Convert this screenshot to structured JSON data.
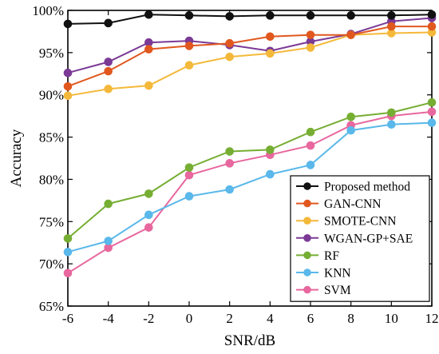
{
  "chart_data": {
    "type": "line",
    "xlabel": "SNR/dB",
    "ylabel": "Accuracy",
    "x": [
      -6,
      -4,
      -2,
      0,
      2,
      4,
      6,
      8,
      10,
      12
    ],
    "xlim": [
      -6,
      12
    ],
    "ylim": [
      65,
      100
    ],
    "x_ticks": [
      "-6",
      "-4",
      "-2",
      "0",
      "2",
      "4",
      "6",
      "8",
      "10",
      "12"
    ],
    "y_ticks": [
      "65%",
      "70%",
      "75%",
      "80%",
      "85%",
      "90%",
      "95%",
      "100%"
    ],
    "y_tick_values": [
      65,
      70,
      75,
      80,
      85,
      90,
      95,
      100
    ],
    "grid": false,
    "legend_position": "bottom-right",
    "series": [
      {
        "name": "Proposed method",
        "color": "#111111",
        "values": [
          98.4,
          98.5,
          99.5,
          99.4,
          99.3,
          99.4,
          99.4,
          99.4,
          99.4,
          99.5
        ]
      },
      {
        "name": "GAN-CNN",
        "color": "#e1581f",
        "values": [
          91.0,
          92.8,
          95.4,
          95.8,
          96.1,
          96.9,
          97.1,
          97.1,
          98.1,
          98.1
        ]
      },
      {
        "name": "SMOTE-CNN",
        "color": "#f4b93a",
        "values": [
          89.9,
          90.7,
          91.1,
          93.5,
          94.5,
          94.9,
          95.6,
          97.1,
          97.3,
          97.4
        ]
      },
      {
        "name": "WGAN-GP+SAE",
        "color": "#7b3a96",
        "values": [
          92.6,
          93.9,
          96.2,
          96.4,
          95.9,
          95.2,
          96.3,
          97.2,
          98.7,
          99.1
        ]
      },
      {
        "name": "RF",
        "color": "#76ae33",
        "values": [
          73.0,
          77.1,
          78.3,
          81.4,
          83.3,
          83.5,
          85.6,
          87.4,
          87.9,
          89.1
        ]
      },
      {
        "name": "KNN",
        "color": "#5ab8ea",
        "values": [
          71.4,
          72.7,
          75.8,
          78.0,
          78.8,
          80.6,
          81.7,
          85.8,
          86.5,
          86.7
        ]
      },
      {
        "name": "SVM",
        "color": "#e8679e",
        "values": [
          68.9,
          71.9,
          74.3,
          80.5,
          81.9,
          82.9,
          84.0,
          86.4,
          87.5,
          88.0
        ]
      }
    ]
  }
}
